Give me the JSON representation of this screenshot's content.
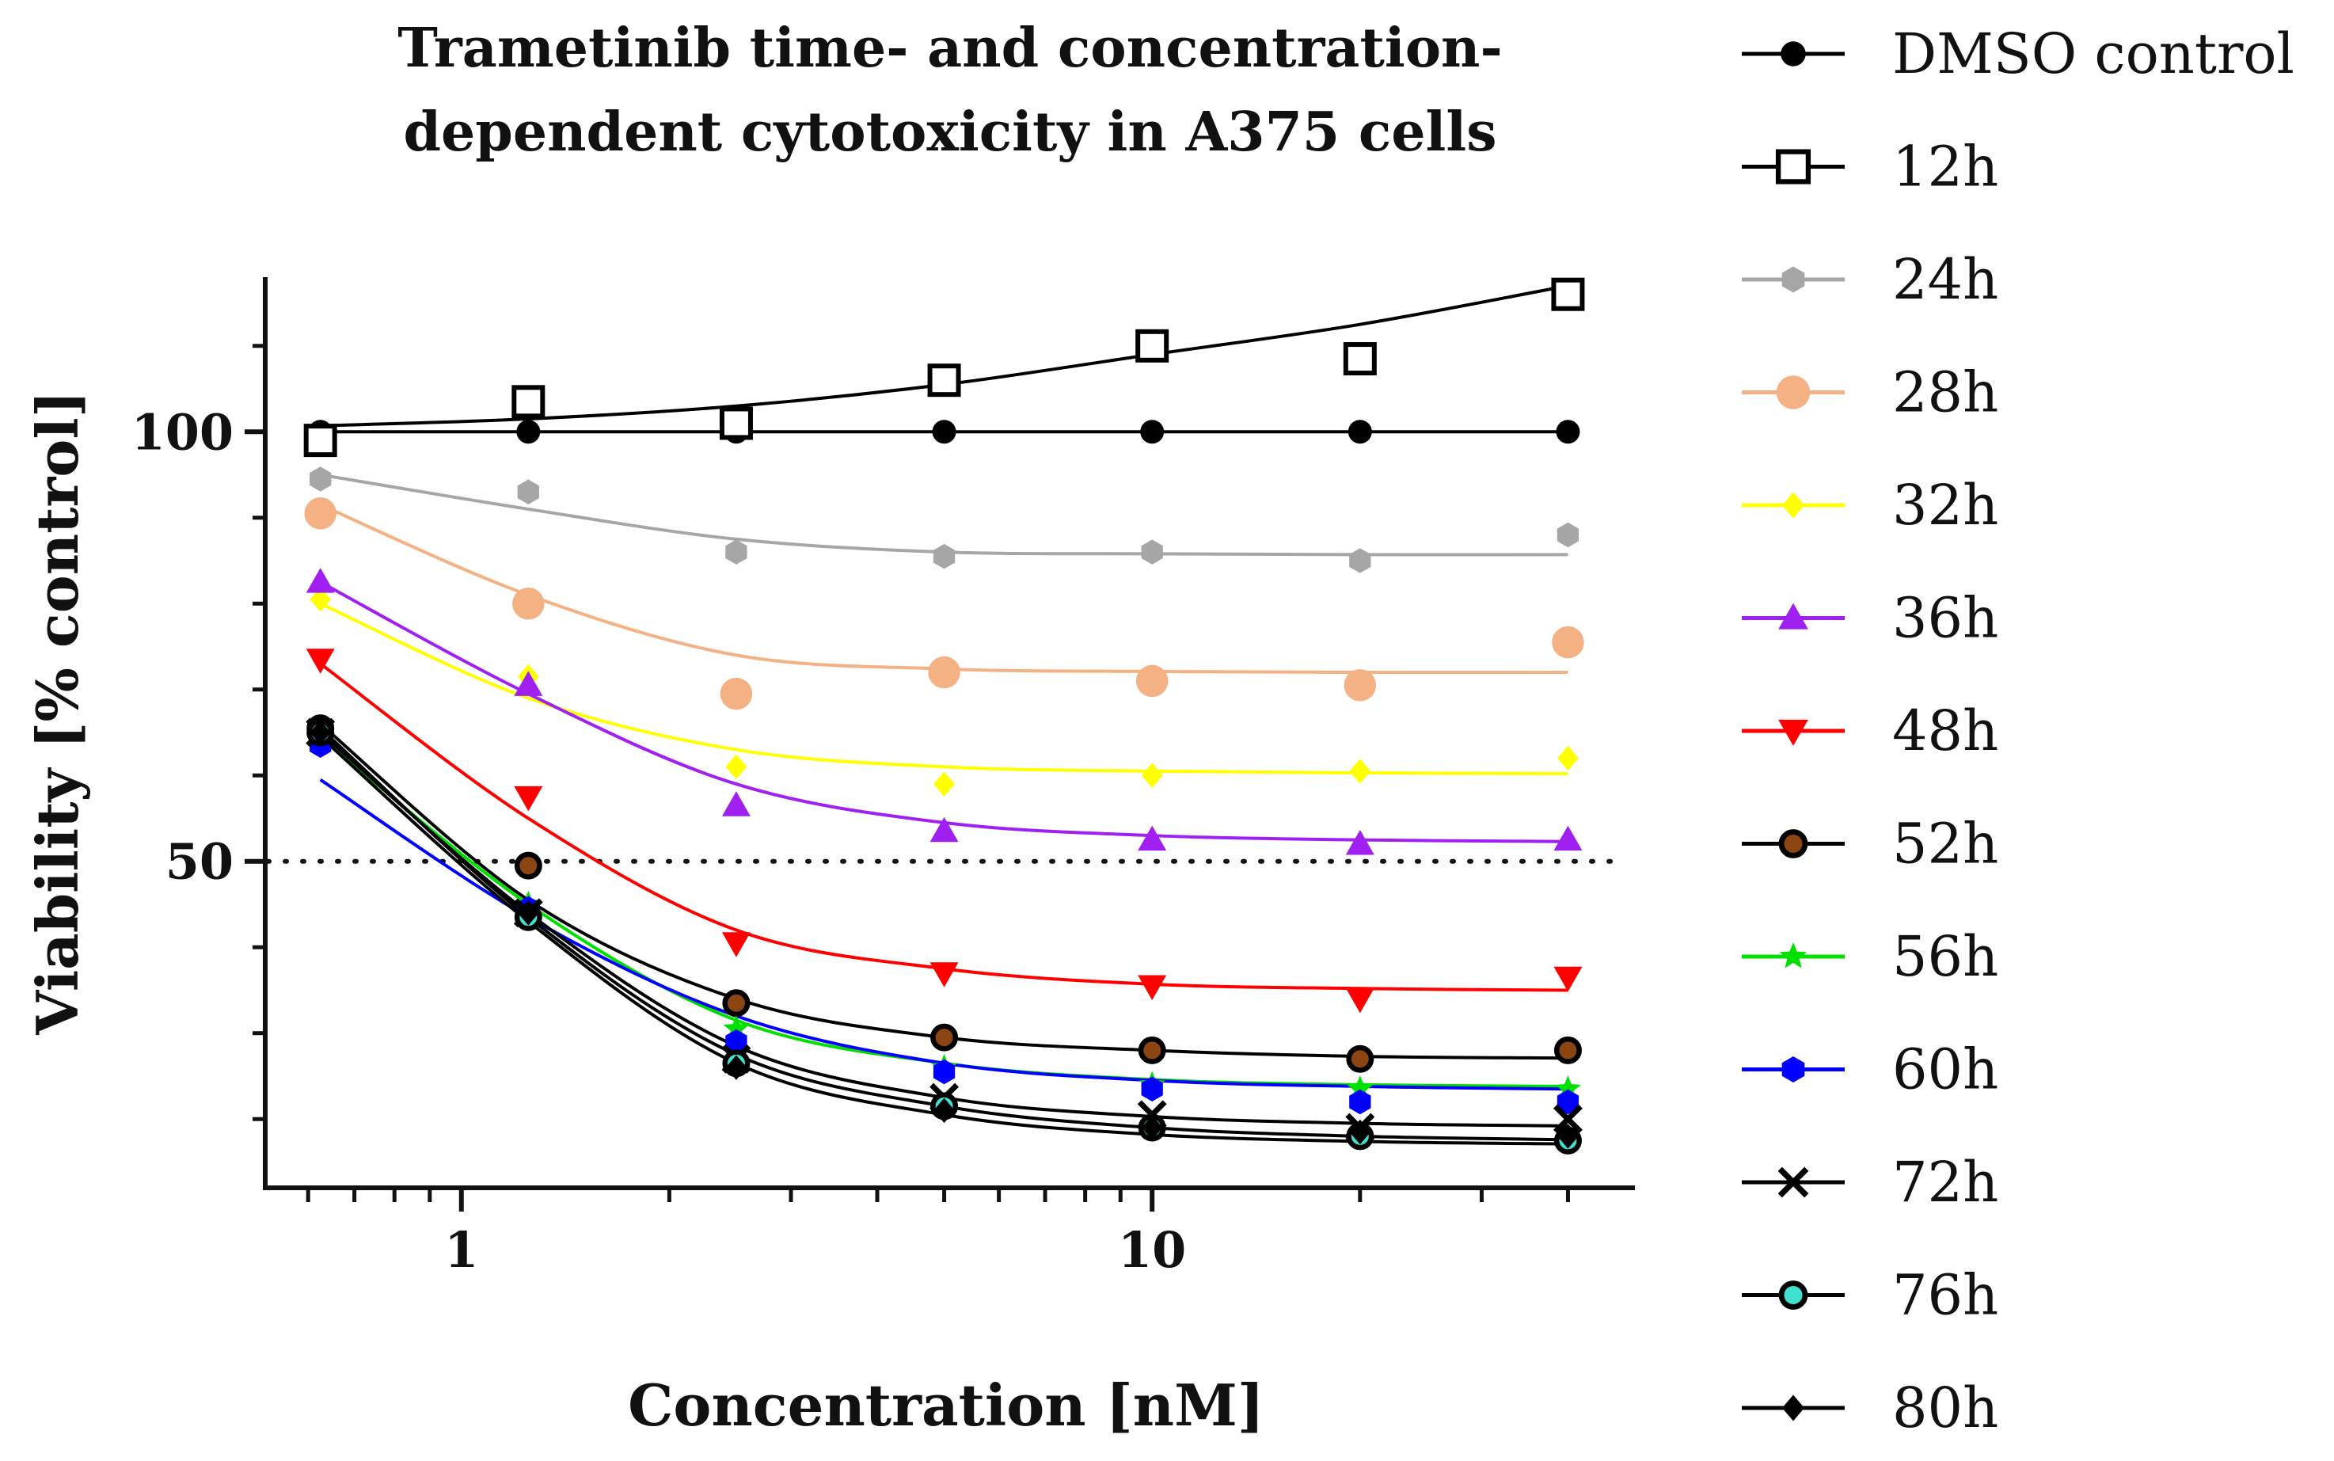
{
  "chart_data": {
    "type": "scatter",
    "title_lines": [
      "Trametinib time- and concentration-",
      "dependent cytotoxicity in A375 cells"
    ],
    "xlabel": "Concentration [nM]",
    "ylabel": "Viability [% control]",
    "x_scale": "log",
    "xlim": [
      0.52,
      50
    ],
    "ylim": [
      12,
      118
    ],
    "x_tick_labels": [
      "1",
      "10"
    ],
    "y_tick_labels": [
      "50",
      "100"
    ],
    "reference_line": {
      "y": 50,
      "style": "dotted"
    },
    "legend_position": "right",
    "x": [
      0.625,
      1.25,
      2.5,
      5,
      10,
      20,
      40
    ],
    "series": [
      {
        "name": "DMSO control",
        "color": "#000000",
        "marker": "circle",
        "values": [
          100,
          100,
          100,
          100,
          100,
          100,
          100
        ],
        "fit": [
          100,
          100,
          100,
          100,
          100,
          100,
          100
        ]
      },
      {
        "name": "12h",
        "color": "#000000",
        "marker": "square-open",
        "values": [
          99,
          103.5,
          101,
          106,
          110,
          108.5,
          116
        ],
        "fit": [
          100.7,
          101.5,
          103,
          105.5,
          109,
          112.5,
          117
        ]
      },
      {
        "name": "24h",
        "color": "#a6a6a6",
        "marker": "hexagon",
        "values": [
          94.5,
          93,
          86,
          85.5,
          86,
          85,
          88
        ],
        "fit": [
          95,
          91,
          87.5,
          86,
          85.8,
          85.7,
          85.7
        ]
      },
      {
        "name": "28h",
        "color": "#f4b183",
        "marker": "circle-large",
        "values": [
          90.5,
          80,
          69.5,
          72,
          71,
          70.5,
          75.5
        ],
        "fit": [
          91.5,
          81,
          74,
          72.4,
          72.1,
          72,
          72
        ]
      },
      {
        "name": "32h",
        "color": "#ffff00",
        "marker": "diamond",
        "values": [
          80.5,
          71.5,
          61,
          59,
          60,
          60.5,
          62
        ],
        "fit": [
          80,
          69,
          63,
          61,
          60.5,
          60.3,
          60.2
        ]
      },
      {
        "name": "36h",
        "color": "#a020f0",
        "marker": "triangle-up",
        "values": [
          82.5,
          70.5,
          56.5,
          53.5,
          52.5,
          52,
          52.5
        ],
        "fit": [
          82.5,
          69.5,
          59,
          54.5,
          53,
          52.5,
          52.3
        ]
      },
      {
        "name": "48h",
        "color": "#ff0000",
        "marker": "triangle-down",
        "values": [
          73.5,
          57.5,
          40.5,
          37,
          35.5,
          34,
          36.5
        ],
        "fit": [
          73,
          55,
          42,
          37.5,
          35.7,
          35.2,
          35
        ]
      },
      {
        "name": "52h",
        "color": "#000000",
        "fill": "#8b4513",
        "marker": "circle-ring",
        "values": [
          65.5,
          49.5,
          33.5,
          29.5,
          28,
          27,
          28
        ],
        "fit": [
          66,
          45.5,
          34,
          29.5,
          28,
          27.3,
          27.1
        ]
      },
      {
        "name": "56h",
        "color": "#00e000",
        "marker": "star",
        "values": [
          64.5,
          45,
          30.5,
          26,
          24,
          23.5,
          23.5
        ],
        "fit": [
          64.5,
          45,
          31.5,
          26.5,
          24.6,
          24,
          23.8
        ]
      },
      {
        "name": "60h",
        "color": "#0000ff",
        "marker": "hexagon",
        "values": [
          63.5,
          44.5,
          29,
          25.5,
          23.5,
          22,
          22
        ],
        "fit": [
          59.5,
          43.5,
          32,
          26.5,
          24.5,
          23.8,
          23.5
        ]
      },
      {
        "name": "72h",
        "color": "#000000",
        "marker": "x",
        "values": [
          65,
          44,
          27,
          22.5,
          20.5,
          19,
          20
        ],
        "fit": [
          65,
          44,
          28.5,
          22.5,
          20.3,
          19.5,
          19.2
        ]
      },
      {
        "name": "76h",
        "color": "#000000",
        "fill": "#40e0d0",
        "marker": "circle-ring",
        "values": [
          65,
          43.5,
          26.5,
          21.5,
          19,
          18,
          17.5
        ],
        "fit": [
          65.5,
          43.5,
          27.5,
          21.5,
          19,
          18,
          17.6
        ]
      },
      {
        "name": "80h",
        "color": "#000000",
        "marker": "diamond",
        "values": [
          65,
          44,
          26,
          21,
          19,
          18.5,
          18
        ],
        "fit": [
          64.5,
          43,
          26.5,
          20.5,
          18.2,
          17.4,
          17.1
        ]
      }
    ]
  }
}
